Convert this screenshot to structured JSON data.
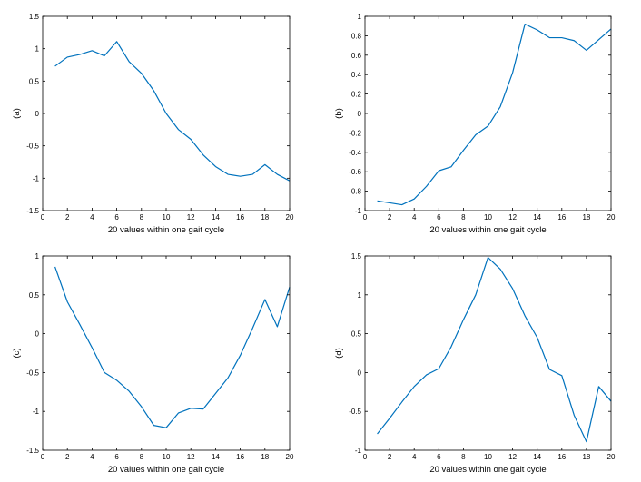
{
  "chart_data": [
    {
      "type": "line",
      "ylabel": "(a)",
      "xlabel": "20 values within one gait cycle",
      "xlim": [
        0,
        20
      ],
      "ylim": [
        -1.5,
        1.5
      ],
      "xticks": [
        "0",
        "2",
        "4",
        "6",
        "8",
        "10",
        "12",
        "14",
        "16",
        "18",
        "20"
      ],
      "yticks": [
        "-1.5",
        "-1",
        "-0.5",
        "0",
        "0.5",
        "1",
        "1.5"
      ],
      "grid": false,
      "color": "#0072BD",
      "x": [
        1,
        2,
        3,
        4,
        5,
        6,
        7,
        8,
        9,
        10,
        11,
        12,
        13,
        14,
        15,
        16,
        17,
        18,
        19,
        20
      ],
      "y": [
        0.73,
        0.87,
        0.91,
        0.97,
        0.89,
        1.11,
        0.8,
        0.62,
        0.35,
        0.0,
        -0.25,
        -0.4,
        -0.64,
        -0.82,
        -0.94,
        -0.97,
        -0.94,
        -0.79,
        -0.94,
        -1.04
      ]
    },
    {
      "type": "line",
      "ylabel": "(b)",
      "xlabel": "20 values within one gait cycle",
      "xlim": [
        0,
        20
      ],
      "ylim": [
        -1,
        1
      ],
      "xticks": [
        "0",
        "2",
        "4",
        "6",
        "8",
        "10",
        "12",
        "14",
        "16",
        "18",
        "20"
      ],
      "yticks": [
        "-1",
        "-0.8",
        "-0.6",
        "-0.4",
        "-0.2",
        "0",
        "0.2",
        "0.4",
        "0.6",
        "0.8",
        "1"
      ],
      "grid": false,
      "color": "#0072BD",
      "x": [
        1,
        2,
        3,
        4,
        5,
        6,
        7,
        8,
        9,
        10,
        11,
        12,
        13,
        14,
        15,
        16,
        17,
        18,
        19,
        20
      ],
      "y": [
        -0.9,
        -0.92,
        -0.94,
        -0.88,
        -0.75,
        -0.59,
        -0.55,
        -0.38,
        -0.22,
        -0.13,
        0.07,
        0.42,
        0.92,
        0.86,
        0.78,
        0.78,
        0.75,
        0.65,
        0.76,
        0.87
      ]
    },
    {
      "type": "line",
      "ylabel": "(c)",
      "xlabel": "20 values within one gait cycle",
      "xlim": [
        0,
        20
      ],
      "ylim": [
        -1.5,
        1
      ],
      "xticks": [
        "0",
        "2",
        "4",
        "6",
        "8",
        "10",
        "12",
        "14",
        "16",
        "18",
        "20"
      ],
      "yticks": [
        "-1.5",
        "-1",
        "-0.5",
        "0",
        "0.5",
        "1"
      ],
      "grid": false,
      "color": "#0072BD",
      "x": [
        1,
        2,
        3,
        4,
        5,
        6,
        7,
        8,
        9,
        10,
        11,
        12,
        13,
        14,
        15,
        16,
        17,
        18,
        19,
        20
      ],
      "y": [
        0.86,
        0.41,
        0.12,
        -0.18,
        -0.5,
        -0.6,
        -0.74,
        -0.94,
        -1.18,
        -1.21,
        -1.02,
        -0.96,
        -0.97,
        -0.77,
        -0.57,
        -0.28,
        0.07,
        0.44,
        0.09,
        0.6
      ]
    },
    {
      "type": "line",
      "ylabel": "(d)",
      "xlabel": "20 values within one gait cycle",
      "xlim": [
        0,
        20
      ],
      "ylim": [
        -1,
        1.5
      ],
      "xticks": [
        "0",
        "2",
        "4",
        "6",
        "8",
        "10",
        "12",
        "14",
        "16",
        "18",
        "20"
      ],
      "yticks": [
        "-1",
        "-0.5",
        "0",
        "0.5",
        "1",
        "1.5"
      ],
      "grid": false,
      "color": "#0072BD",
      "x": [
        1,
        2,
        3,
        4,
        5,
        6,
        7,
        8,
        9,
        10,
        11,
        12,
        13,
        14,
        15,
        16,
        17,
        18,
        19,
        20
      ],
      "y": [
        -0.79,
        -0.59,
        -0.38,
        -0.18,
        -0.03,
        0.05,
        0.33,
        0.68,
        1.0,
        1.48,
        1.33,
        1.08,
        0.73,
        0.45,
        0.04,
        -0.04,
        -0.55,
        -0.89,
        -0.18,
        -0.37
      ]
    }
  ]
}
